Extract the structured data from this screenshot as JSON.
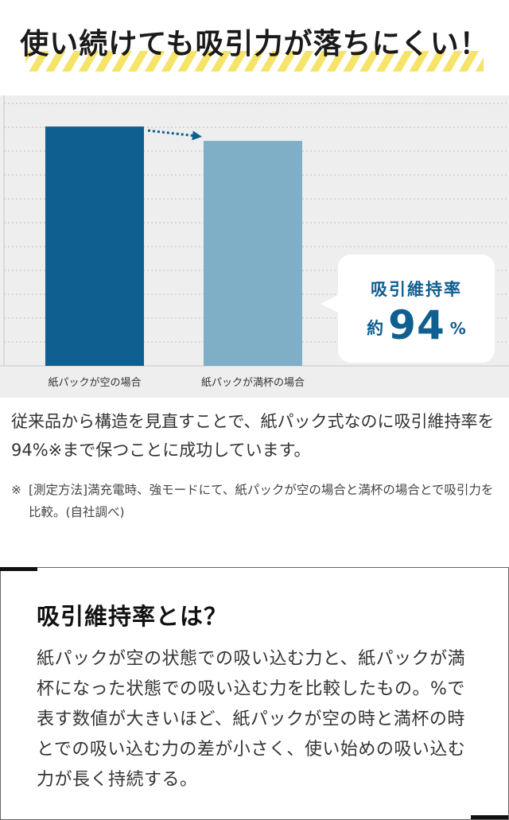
{
  "headline": "使い続けても吸引力が落ちにくい！",
  "chart_data": {
    "type": "bar",
    "categories": [
      "紙パックが空の場合",
      "紙パックが満杯の場合"
    ],
    "values": [
      100,
      94
    ],
    "ylim": [
      0,
      109
    ],
    "unit": "%",
    "grid": true,
    "colors": [
      "#0f5f91",
      "#7fafc6"
    ],
    "annotation": {
      "title": "吸引維持率",
      "prefix": "約",
      "value": "94",
      "suffix": "%"
    }
  },
  "description": "従来品から構造を見直すことで、紙パック式なのに吸引維持率を94%※まで保つことに成功しています。",
  "note": {
    "mark": "※",
    "text": "[測定方法]満充電時、強モードにて、紙パックが空の場合と満杯の場合とで吸引力を比較。(自社調べ)"
  },
  "definition": {
    "title": "吸引維持率とは？",
    "body": "紙パックが空の状態での吸い込む力と、紙パックが満杯になった状態での吸い込む力を比較したもの。%で表す数値が大きいほど、紙パックが空の時と満杯の時とでの吸い込む力の差が小さく、使い始めの吸い込む力が長く持続する。"
  }
}
